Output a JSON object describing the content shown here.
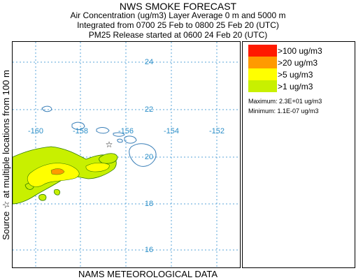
{
  "title": {
    "main": "NWS SMOKE FORECAST",
    "line1": "Air Concentration (ug/m3) Layer Average    0 m and  5000 m",
    "line2": "Integrated from 0700 25 Feb to 0800 25 Feb 20 (UTC)",
    "line3": "PM25 Release started at 0600 24 Feb 20 (UTC)"
  },
  "side_label": "Source ☆   at multiple locations   from   100 m",
  "bottom_label": "NAMS METEOROLOGICAL DATA",
  "map": {
    "lon_labels": [
      "-160",
      "-158",
      "-156",
      "-154",
      "-152"
    ],
    "lat_labels": [
      "24",
      "22",
      "20",
      "18",
      "16"
    ],
    "grid_color": "#5aa6d8",
    "coast_color": "#3a7fb8",
    "source_marker": "star-icon"
  },
  "legend": {
    "items": [
      {
        "label": ">100 ug/m3",
        "color": "#ff1a00"
      },
      {
        "label": ">20 ug/m3",
        "color": "#ff9a00"
      },
      {
        "label": ">5 ug/m3",
        "color": "#ffff00"
      },
      {
        "label": ">1 ug/m3",
        "color": "#c8f000"
      }
    ],
    "maximum": "Maximum: 2.3E+01 ug/m3",
    "minimum": "Minimum: 1.1E-07 ug/m3"
  }
}
